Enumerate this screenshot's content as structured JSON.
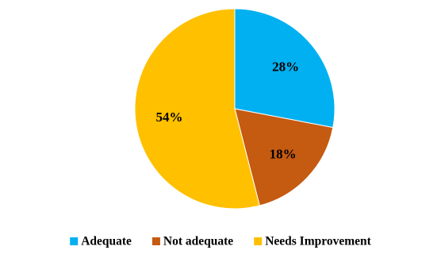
{
  "chart_data": {
    "type": "pie",
    "categories": [
      "Adequate",
      "Not adequate",
      "Needs Improvement"
    ],
    "values": [
      28,
      18,
      54
    ],
    "labels": [
      "28%",
      "18%",
      "54%"
    ],
    "colors": [
      "#00B0F0",
      "#C55A11",
      "#FFC000"
    ],
    "start_angle_deg": 0,
    "direction": "clockwise",
    "legend_position": "bottom",
    "title": ""
  }
}
